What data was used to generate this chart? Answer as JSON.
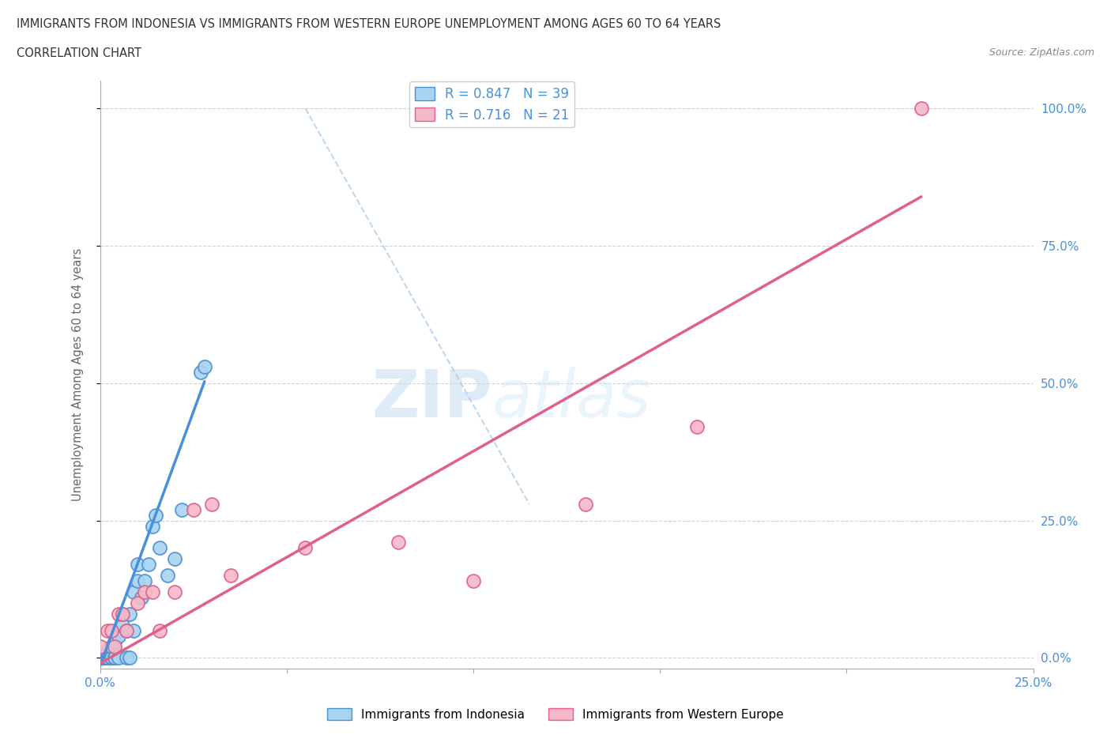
{
  "title_line1": "IMMIGRANTS FROM INDONESIA VS IMMIGRANTS FROM WESTERN EUROPE UNEMPLOYMENT AMONG AGES 60 TO 64 YEARS",
  "title_line2": "CORRELATION CHART",
  "source_text": "Source: ZipAtlas.com",
  "ylabel": "Unemployment Among Ages 60 to 64 years",
  "xlim": [
    0.0,
    0.25
  ],
  "ylim": [
    -0.02,
    1.05
  ],
  "xtick_positions": [
    0.0,
    0.05,
    0.1,
    0.15,
    0.2,
    0.25
  ],
  "xtick_labels": [
    "0.0%",
    "",
    "",
    "",
    "",
    "25.0%"
  ],
  "ytick_positions": [
    0.0,
    0.25,
    0.5,
    0.75,
    1.0
  ],
  "ytick_labels": [
    "0.0%",
    "25.0%",
    "50.0%",
    "75.0%",
    "100.0%"
  ],
  "indonesia_color": "#A8D4F0",
  "indonesia_edge_color": "#4A90D9",
  "western_europe_color": "#F5B8C8",
  "western_europe_edge_color": "#E0608A",
  "legend_indonesia": "Immigrants from Indonesia",
  "legend_western_europe": "Immigrants from Western Europe",
  "R_indonesia": 0.847,
  "N_indonesia": 39,
  "R_western_europe": 0.716,
  "N_western_europe": 21,
  "indonesia_x": [
    0.0,
    0.0,
    0.001,
    0.001,
    0.001,
    0.001,
    0.002,
    0.002,
    0.002,
    0.002,
    0.003,
    0.003,
    0.003,
    0.004,
    0.004,
    0.004,
    0.005,
    0.005,
    0.006,
    0.006,
    0.007,
    0.007,
    0.008,
    0.008,
    0.009,
    0.009,
    0.01,
    0.01,
    0.011,
    0.012,
    0.013,
    0.014,
    0.015,
    0.016,
    0.018,
    0.02,
    0.022,
    0.027,
    0.028
  ],
  "indonesia_y": [
    0.0,
    0.0,
    0.0,
    0.0,
    0.0,
    0.0,
    0.0,
    0.0,
    0.0,
    0.01,
    0.0,
    0.0,
    0.02,
    0.0,
    0.0,
    0.03,
    0.0,
    0.04,
    0.06,
    0.08,
    0.0,
    0.05,
    0.0,
    0.08,
    0.12,
    0.05,
    0.14,
    0.17,
    0.11,
    0.14,
    0.17,
    0.24,
    0.26,
    0.2,
    0.15,
    0.18,
    0.27,
    0.52,
    0.53
  ],
  "western_europe_x": [
    0.0,
    0.002,
    0.003,
    0.004,
    0.005,
    0.006,
    0.007,
    0.01,
    0.012,
    0.014,
    0.016,
    0.02,
    0.025,
    0.03,
    0.035,
    0.055,
    0.08,
    0.1,
    0.13,
    0.16,
    0.22
  ],
  "western_europe_y": [
    0.02,
    0.05,
    0.05,
    0.02,
    0.08,
    0.08,
    0.05,
    0.1,
    0.12,
    0.12,
    0.05,
    0.12,
    0.27,
    0.28,
    0.15,
    0.2,
    0.21,
    0.14,
    0.28,
    0.42,
    1.0
  ],
  "blue_line_x": [
    0.0,
    0.028
  ],
  "blue_line_y_intercept": -0.02,
  "blue_line_slope": 21.0,
  "pink_line_x": [
    0.0,
    0.22
  ],
  "pink_line_y_intercept": 0.0,
  "pink_line_slope": 3.8,
  "dashed_line_x": [
    0.06,
    0.12
  ],
  "dashed_line_y": [
    0.98,
    0.3
  ],
  "watermark_text": "ZIP",
  "watermark_text2": "atlas",
  "background_color": "#ffffff",
  "grid_color": "#cccccc",
  "axis_label_color": "#666666",
  "tick_color": "#4A90D9"
}
